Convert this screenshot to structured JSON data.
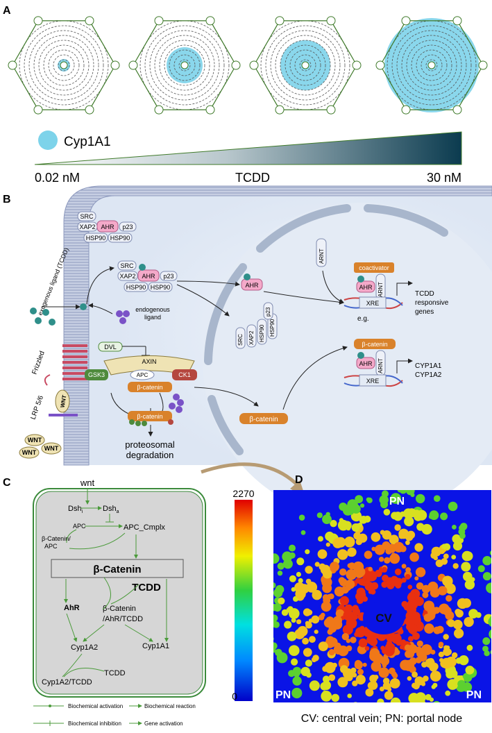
{
  "panels": {
    "a": "A",
    "b": "B",
    "c": "C",
    "d": "D"
  },
  "panel_a": {
    "legend_label": "Cyp1A1",
    "gradient_left": "0.02 nM",
    "gradient_center": "TCDD",
    "gradient_right": "30 nM",
    "colors": {
      "lobule_line": "#3f7a2a",
      "cyp_fill": "#7dd3ea",
      "gradient_dark": "#0b3b4f"
    }
  },
  "panel_b": {
    "membrane_proteins_top": {
      "src": "SRC",
      "xap2": "XAP2",
      "ahr": "AHR",
      "p23": "p23",
      "hsp1": "HSP90",
      "hsp2": "HSP90"
    },
    "membrane_proteins_mid": {
      "src": "SRC",
      "xap2": "XAP2",
      "ahr": "AHR",
      "p23": "p23",
      "hsp1": "HSP90",
      "hsp2": "HSP90"
    },
    "exogenous_ligand": "exogenous ligand (TCDD)",
    "endogenous_ligand_line1": "endogenous",
    "endogenous_ligand_line2": "ligand",
    "frizzled": "Frizzled",
    "lrp": "LRP 5/6",
    "wnt": "WNT",
    "dvl": "DVL",
    "axin": "AXIN",
    "apc": "APC",
    "gsk3": "GSK3",
    "ck1": "CK1",
    "beta_catenin": "β-catenin",
    "beta_catenin_2": "β-catenin",
    "beta_catenin_nuc_path": "β-catenin",
    "proteo_line1": "proteosomal",
    "proteo_line2": "degradation",
    "nucleus": {
      "ahr": "AHR",
      "arnt": "ARNT",
      "coactivator": "coactivator",
      "xre": "XRE",
      "tcdd_genes_line1": "TCDD",
      "tcdd_genes_line2": "responsive",
      "tcdd_genes_line3": "genes",
      "eg": "e.g.",
      "beta_catenin": "β-catenin",
      "cyp1a1": "CYP1A1",
      "cyp1a2": "CYP1A2",
      "src": "SRC",
      "xap2": "XAP2",
      "hsp90": "HSP90",
      "p23": "p23"
    },
    "colors": {
      "ahr": "#f4a9c9",
      "beta": "#d9822b",
      "gsk3": "#4e8a3c",
      "ck1": "#b5473f",
      "wnt": "#efe3b4",
      "membrane": "#9aa7c8"
    }
  },
  "panel_c": {
    "wnt": "wnt",
    "dshi": "Dsh",
    "dshi_sub": "i",
    "dsha": "Dsh",
    "dsha_sub": "a",
    "apc": "APC",
    "apc_cmplx": "APC_Cmplx",
    "bcat_apc_1": "β-Catenin/",
    "bcat_apc_2": "APC",
    "bcat": "β-Catenin",
    "tcdd": "TCDD",
    "ahr": "AhR",
    "complex_1": "β-Catenin",
    "complex_2": "/AhR/TCDD",
    "cyp1a2": "Cyp1A2",
    "cyp1a1": "Cyp1A1",
    "cyp1a2_tcdd": "Cyp1A2/TCDD",
    "tcdd_small": "TCDD",
    "legend": {
      "activation": "Biochemical activation",
      "reaction": "Biochemical reaction",
      "inhibition": "Biochemical inhibition",
      "gene": "Gene activation"
    }
  },
  "panel_d": {
    "scale_max": "2270",
    "scale_min": "0",
    "pn_top": "PN",
    "pn_left": "PN",
    "pn_right": "PN",
    "cv": "CV",
    "caption": "CV: central vein; PN: portal node"
  }
}
